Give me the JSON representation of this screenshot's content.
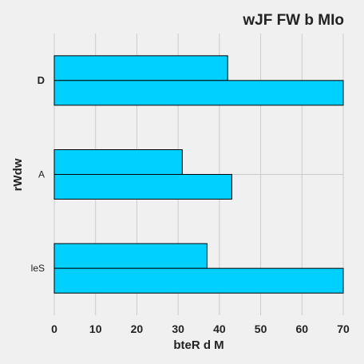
{
  "chart_data": {
    "type": "bar",
    "orientation": "horizontal",
    "title": "wJF FW  b MIo",
    "xlabel": "bteR d M",
    "ylabel": "rWdw",
    "categories": [
      "D",
      "A",
      "leS"
    ],
    "series": [
      {
        "values": [
          42,
          31,
          37
        ]
      },
      {
        "values": [
          70,
          43,
          70
        ]
      }
    ],
    "xlim": [
      0,
      70
    ],
    "x_ticks": [
      0,
      10,
      20,
      30,
      40,
      50,
      60,
      70
    ],
    "grid": true,
    "bar_color": "#00d0ff",
    "edge_color": "#000000",
    "background": "#f0f0f0",
    "grid_color": "#cbcbcb"
  }
}
